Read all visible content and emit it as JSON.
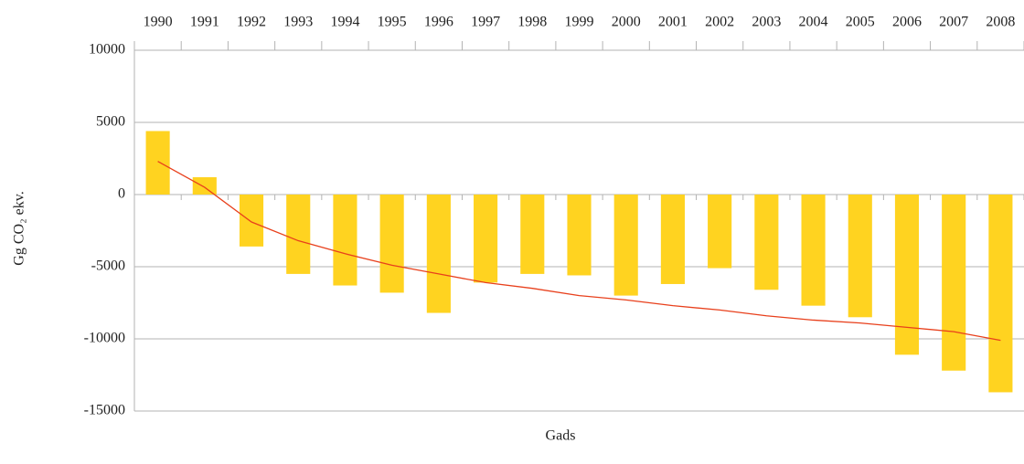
{
  "chart_data": {
    "type": "bar",
    "ylabel": "Gg CO₂ ekv.",
    "xlabel": "Gads",
    "categories": [
      "1990",
      "1991",
      "1992",
      "1993",
      "1994",
      "1995",
      "1996",
      "1997",
      "1998",
      "1999",
      "2000",
      "2001",
      "2002",
      "2003",
      "2004",
      "2005",
      "2006",
      "2007",
      "2008"
    ],
    "series": [
      {
        "color": "#ffd320",
        "values": [
          4400,
          1200,
          -3600,
          -5500,
          -6300,
          -6800,
          -8200,
          -6100,
          -5500,
          -5600,
          -7000,
          -6200,
          -5100,
          -6600,
          -7700,
          -8500,
          -11100,
          -12200,
          -13700
        ]
      },
      {
        "type": "line",
        "color": "#e8401c",
        "values": [
          2300,
          500,
          -1900,
          -3200,
          -4100,
          -4900,
          -5500,
          -6100,
          -6500,
          -7000,
          -7300,
          -7700,
          -8000,
          -8400,
          -8700,
          -8900,
          -9200,
          -9500,
          -10100
        ]
      }
    ],
    "ylim": [
      -15000,
      10000
    ],
    "yticks": [
      -15000,
      -10000,
      -5000,
      0,
      5000,
      10000
    ],
    "grid": true
  }
}
